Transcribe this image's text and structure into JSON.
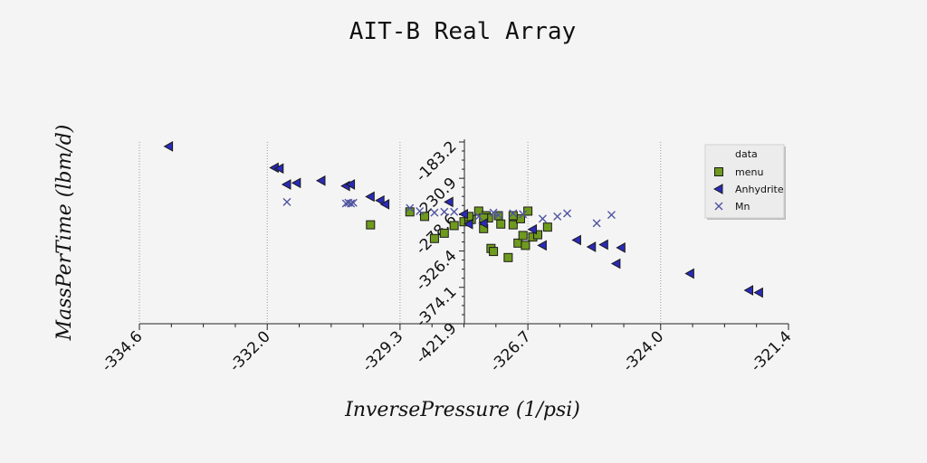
{
  "chart_data": {
    "type": "scatter",
    "title": "AIT-B Real Array",
    "xlabel": "InversePressure (1/psi)",
    "ylabel": "MassPerTime (lbm/d)",
    "xlim": [
      -334.6,
      -321.4
    ],
    "ylim": [
      -421.9,
      -183.2
    ],
    "x_ticks": [
      "-334.6",
      "-332.0",
      "-329.3",
      "-326.7",
      "-324.0",
      "-321.4"
    ],
    "x_tick_values": [
      -334.6,
      -332.0,
      -329.3,
      -326.7,
      -324.0,
      -321.4
    ],
    "y_ticks": [
      "-421.9",
      "-374.1",
      "-326.4",
      "-278.6",
      "-230.9",
      "-183.2"
    ],
    "y_tick_values": [
      -421.9,
      -374.1,
      -326.4,
      -278.6,
      -230.9,
      -183.2
    ],
    "grid": "vertical dotted",
    "legend": {
      "title": "data",
      "position": "top-right"
    },
    "series": [
      {
        "name": "menu",
        "marker": "square",
        "color": "#6f9a1e",
        "x": [
          -329.9,
          -329.1,
          -328.8,
          -328.6,
          -328.4,
          -328.2,
          -328.0,
          -327.9,
          -327.85,
          -327.7,
          -327.6,
          -327.55,
          -327.5,
          -327.45,
          -327.4,
          -327.3,
          -327.25,
          -327.1,
          -327.0,
          -326.9,
          -326.85,
          -326.8,
          -326.75,
          -326.6,
          -326.5,
          -326.3,
          -327.9,
          -327.6,
          -327.0,
          -326.7
        ],
        "y": [
          -292,
          -275,
          -281,
          -310,
          -303,
          -293,
          -288,
          -284,
          -285,
          -274,
          -297,
          -280,
          -283,
          -323,
          -327,
          -280,
          -291,
          -335,
          -292,
          -316,
          -284,
          -306,
          -319,
          -308,
          -305,
          -295,
          -281,
          -283,
          -280,
          -274
        ]
      },
      {
        "name": "Anhydrite",
        "marker": "triangle-left",
        "color": "#2a2ab8",
        "x": [
          -334.0,
          -331.85,
          -331.75,
          -331.6,
          -331.4,
          -330.9,
          -330.4,
          -330.3,
          -329.9,
          -329.7,
          -329.6,
          -328.3,
          -328.0,
          -327.9,
          -327.6,
          -326.4,
          -325.7,
          -325.4,
          -325.15,
          -324.9,
          -324.8,
          -323.4,
          -322.2,
          -322.0,
          -326.6
        ],
        "y": [
          -189,
          -217,
          -218,
          -239,
          -237,
          -234,
          -241,
          -239,
          -255,
          -260,
          -265,
          -262,
          -278,
          -291,
          -290,
          -319,
          -312,
          -321,
          -318,
          -343,
          -322,
          -356,
          -378,
          -381,
          -298
        ]
      },
      {
        "name": "Mn",
        "marker": "x",
        "color": "#5055a0",
        "x": [
          -331.6,
          -330.4,
          -330.35,
          -330.3,
          -330.25,
          -329.1,
          -328.9,
          -328.6,
          -328.4,
          -328.2,
          -327.7,
          -327.4,
          -327.3,
          -327.0,
          -326.8,
          -326.4,
          -326.1,
          -325.9,
          -325.3,
          -325.0
        ],
        "y": [
          -262,
          -264,
          -263,
          -264,
          -263,
          -270,
          -274,
          -276,
          -275,
          -275,
          -281,
          -276,
          -279,
          -277,
          -278,
          -284,
          -281,
          -277,
          -290,
          -279
        ]
      }
    ]
  }
}
